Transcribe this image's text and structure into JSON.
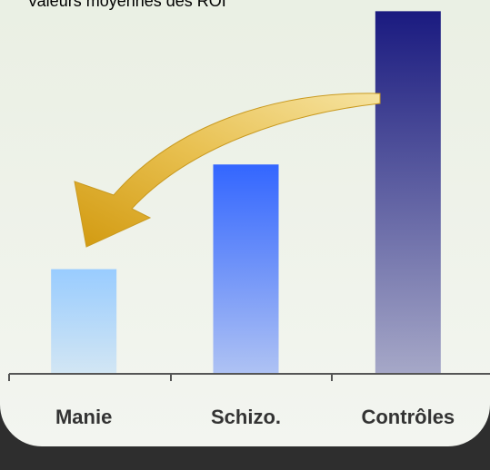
{
  "chart_data": {
    "type": "bar",
    "title": "Valeurs moyennes des ROI",
    "categories": [
      "Manie",
      "Schizo.",
      "Contrôles"
    ],
    "values": [
      28,
      56,
      97
    ],
    "colors": [
      "#99ccff",
      "#3366ff",
      "#1a1a80"
    ],
    "ylim": [
      0,
      100
    ]
  }
}
